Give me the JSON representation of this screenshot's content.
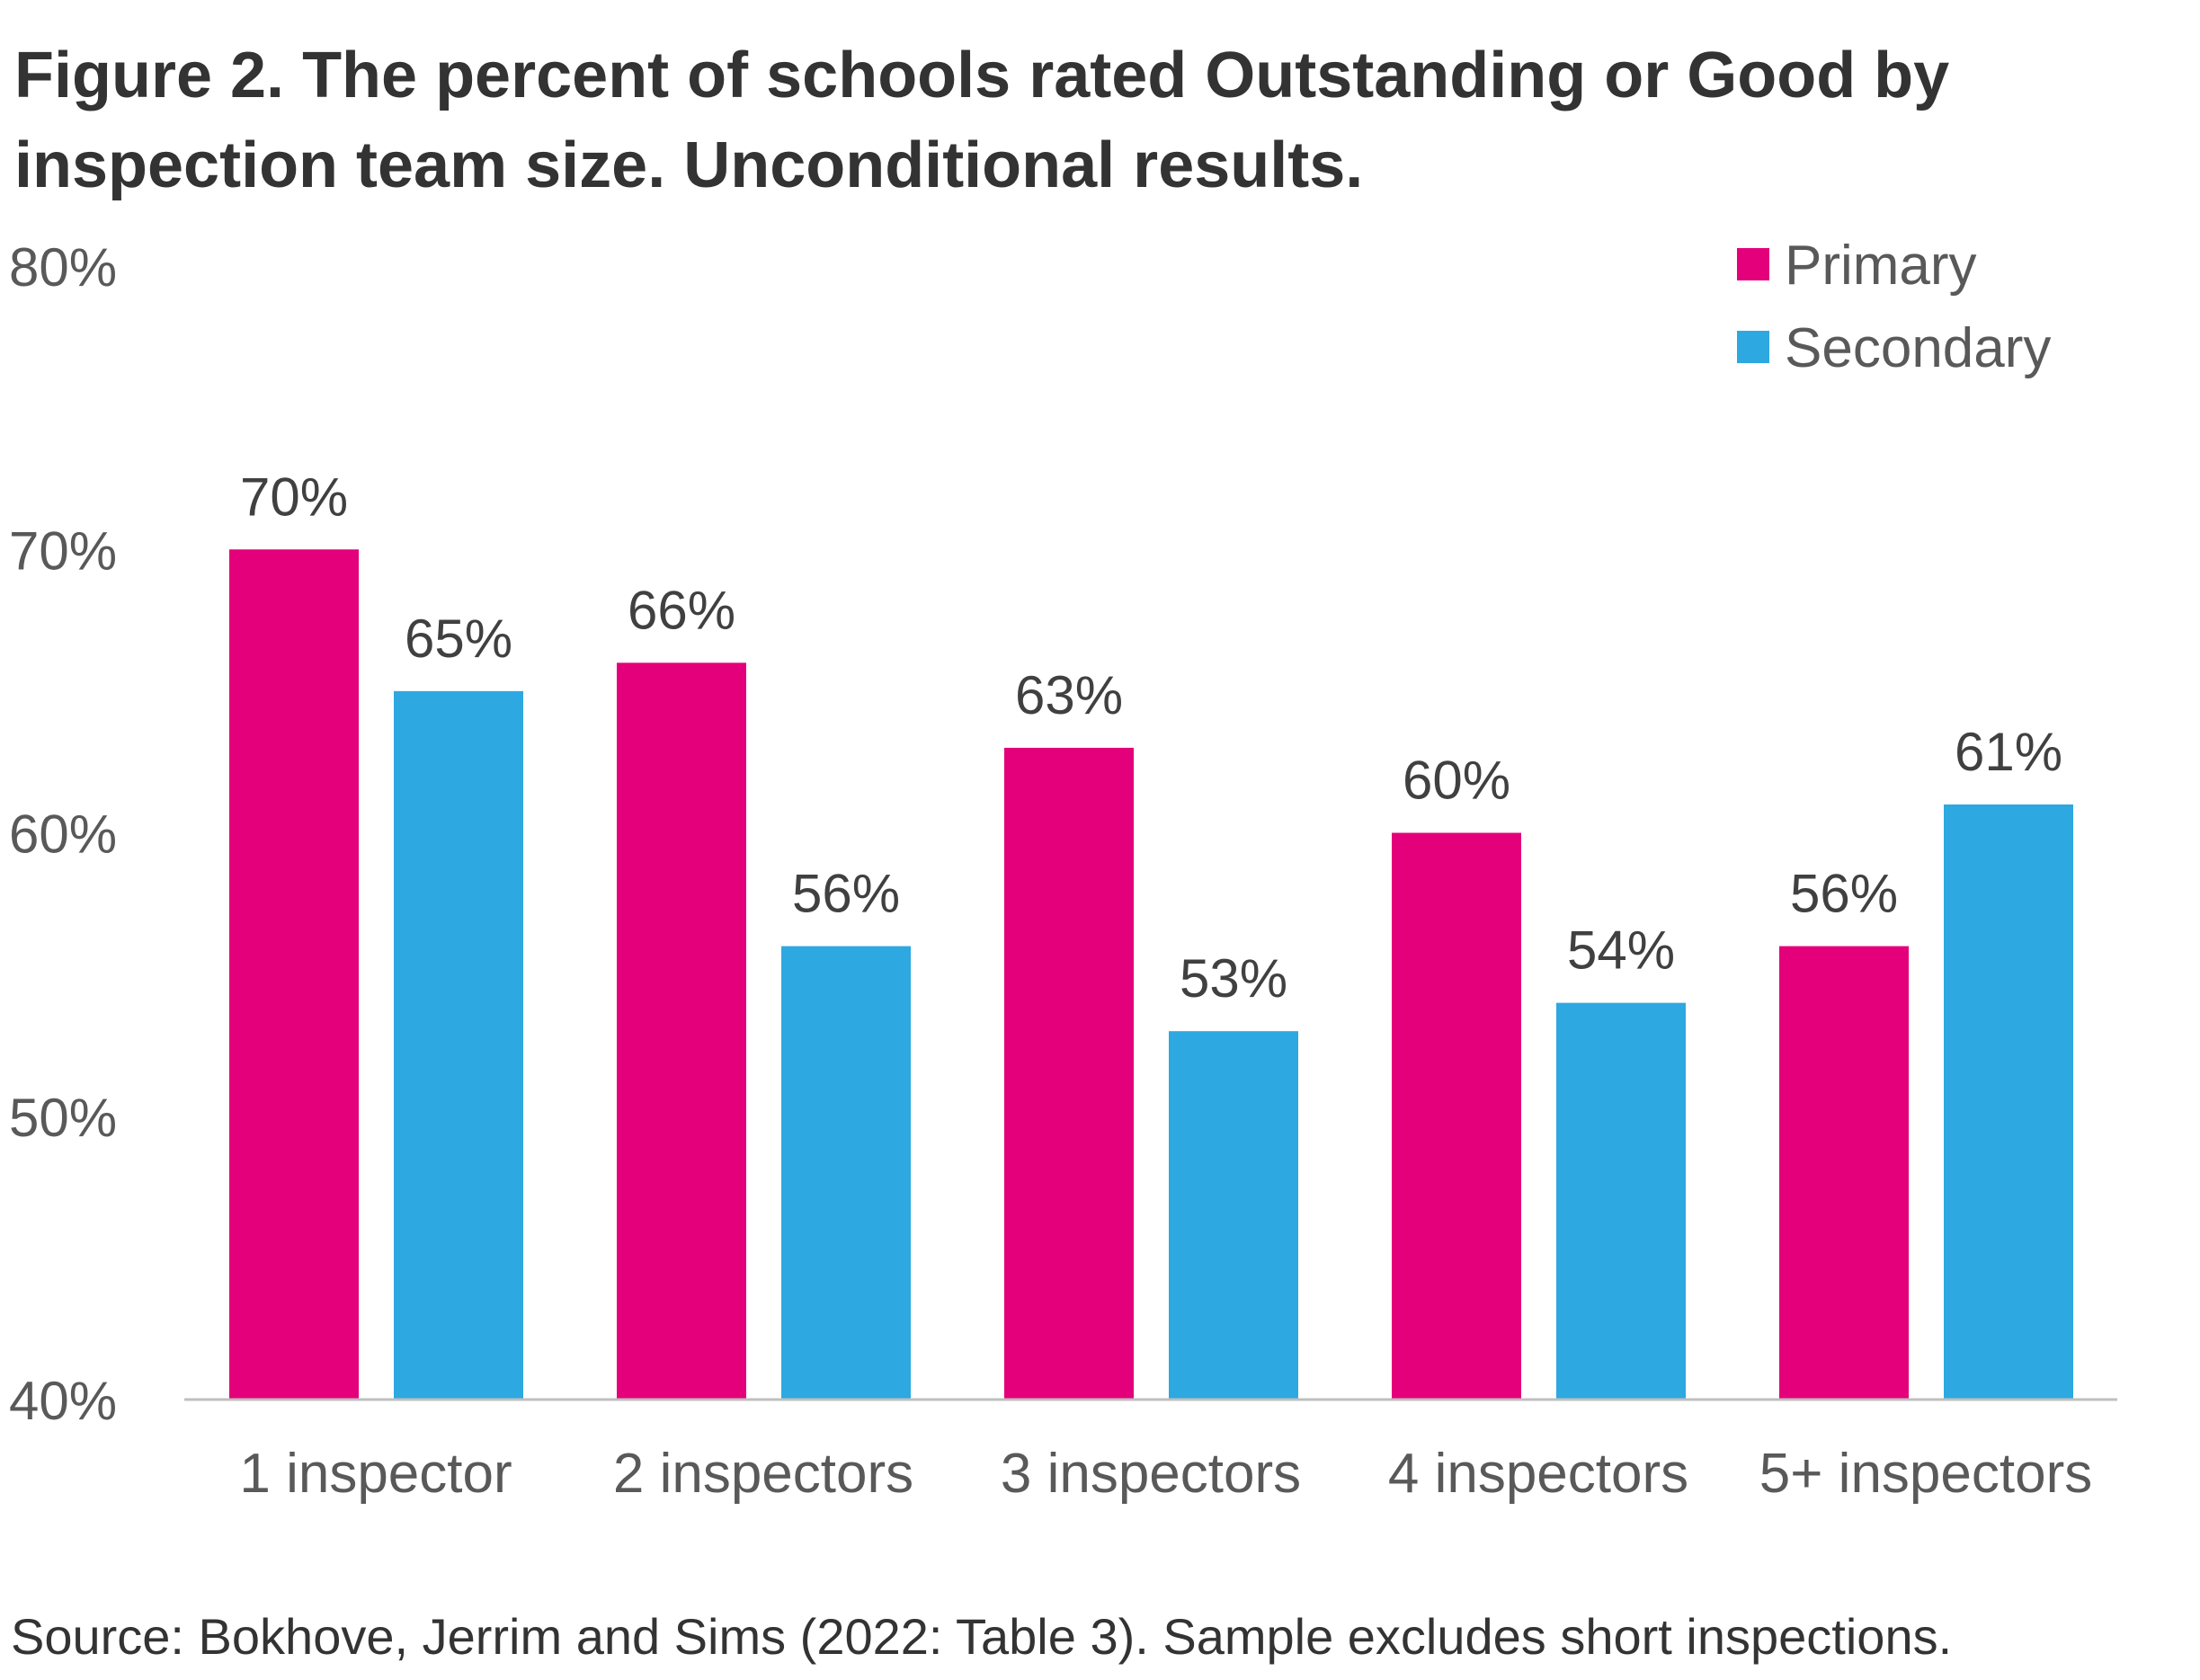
{
  "title": {
    "line1": "Figure 2. The percent of schools rated Outstanding or Good by",
    "line2": "inspection team size. Unconditional results."
  },
  "source": "Source: Bokhove, Jerrim and Sims (2022: Table 3). Sample excludes short inspections.",
  "chart_data": {
    "type": "bar",
    "categories": [
      "1 inspector",
      "2 inspectors",
      "3 inspectors",
      "4 inspectors",
      "5+ inspectors"
    ],
    "series": [
      {
        "name": "Primary",
        "color": "#E3007A",
        "values": [
          70,
          66,
          63,
          60,
          56
        ],
        "labels": [
          "70%",
          "66%",
          "63%",
          "60%",
          "56%"
        ]
      },
      {
        "name": "Secondary",
        "color": "#2EA8E0",
        "values": [
          65,
          56,
          53,
          54,
          61
        ],
        "labels": [
          "65%",
          "56%",
          "53%",
          "54%",
          "61%"
        ]
      }
    ],
    "ylim": [
      40,
      80
    ],
    "yticks": [
      40,
      50,
      60,
      70,
      80
    ],
    "ytick_labels": [
      "40%",
      "50%",
      "60%",
      "70%",
      "80%"
    ],
    "grid": false,
    "legend_position": "top-right"
  }
}
